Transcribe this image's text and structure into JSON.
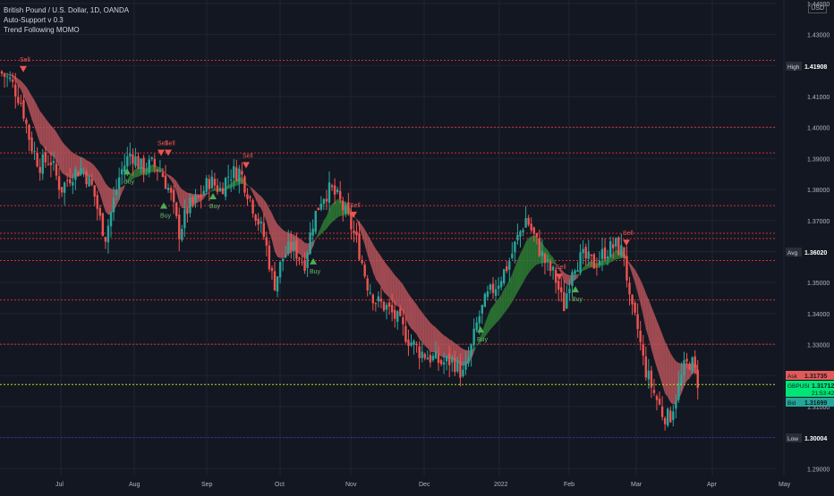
{
  "header": {
    "title": "British Pound / U.S. Dollar, 1D, OANDA",
    "indicator1": "Auto-Support v 0.3",
    "indicator2": "Trend Following MOMO",
    "currency": "USD"
  },
  "chart_data": {
    "type": "candlestick",
    "y_axis_ticks": [
      "1.29000",
      "1.30000",
      "1.31000",
      "1.32000",
      "1.33000",
      "1.34000",
      "1.35000",
      "1.36000",
      "1.37000",
      "1.38000",
      "1.39000",
      "1.40000",
      "1.41000",
      "1.42000",
      "1.43000",
      "1.44000"
    ],
    "ylim": [
      1.288,
      1.44
    ],
    "x_axis_labels": [
      "Jul",
      "Aug",
      "Sep",
      "Oct",
      "Nov",
      "Dec",
      "2022",
      "Feb",
      "Mar",
      "Apr",
      "May"
    ],
    "price_labels": [
      {
        "label": "High",
        "value": "1.41908",
        "color": "#131722"
      },
      {
        "label": "Avg",
        "value": "1.36020",
        "color": "#131722"
      },
      {
        "label": "Low",
        "value": "1.30004",
        "color": "#131722"
      },
      {
        "label": "Ask",
        "value": "1.31735",
        "color": "#e25a5a"
      },
      {
        "label": "GBPUSD",
        "value": "1.31712",
        "extra": "21:53:42",
        "color": "#00e676"
      },
      {
        "label": "Bid",
        "value": "1.31699",
        "color": "#26a69a"
      }
    ],
    "support_resistance_levels": [
      1.4217,
      1.4001,
      1.3918,
      1.3748,
      1.3659,
      1.3642,
      1.3571,
      1.3444,
      1.3301
    ],
    "current_price_line": 1.3171,
    "low_line": 1.3,
    "signals": [
      {
        "type": "Sell",
        "label": "Sell",
        "month": "Jun",
        "value": 1.419
      },
      {
        "type": "Buy",
        "label": "Buy",
        "month": "Aug",
        "value": 1.386
      },
      {
        "type": "Sell",
        "label": "Sell",
        "month": "Aug",
        "value": 1.392
      },
      {
        "type": "Sell",
        "label": "Sell",
        "month": "Aug",
        "value": 1.392
      },
      {
        "type": "Buy",
        "label": "Buy",
        "month": "Aug",
        "value": 1.375
      },
      {
        "type": "Buy",
        "label": "Buy",
        "month": "Sep",
        "value": 1.378
      },
      {
        "type": "Sell",
        "label": "Sell",
        "month": "Sep",
        "value": 1.388
      },
      {
        "type": "Buy",
        "label": "Buy",
        "month": "Oct",
        "value": 1.357
      },
      {
        "type": "Sell",
        "label": "Sell",
        "month": "Nov",
        "value": 1.372
      },
      {
        "type": "Buy",
        "label": "Buy",
        "month": "Dec",
        "value": 1.335
      },
      {
        "type": "Sell",
        "label": "Sell",
        "month": "Feb",
        "value": 1.352
      },
      {
        "type": "Buy",
        "label": "Buy",
        "month": "Feb",
        "value": 1.348
      },
      {
        "type": "Sell",
        "label": "Sell",
        "month": "Feb",
        "value": 1.363
      }
    ],
    "colors": {
      "background": "#131722",
      "grid": "#1f2433",
      "up": "#26a69a",
      "down": "#ef5350",
      "level": "#d32f2f",
      "low": "#2a2fb0",
      "current": "#b6e01e",
      "ribbon_bull": "#2e7d32",
      "ribbon_bear": "#b8545a"
    }
  }
}
